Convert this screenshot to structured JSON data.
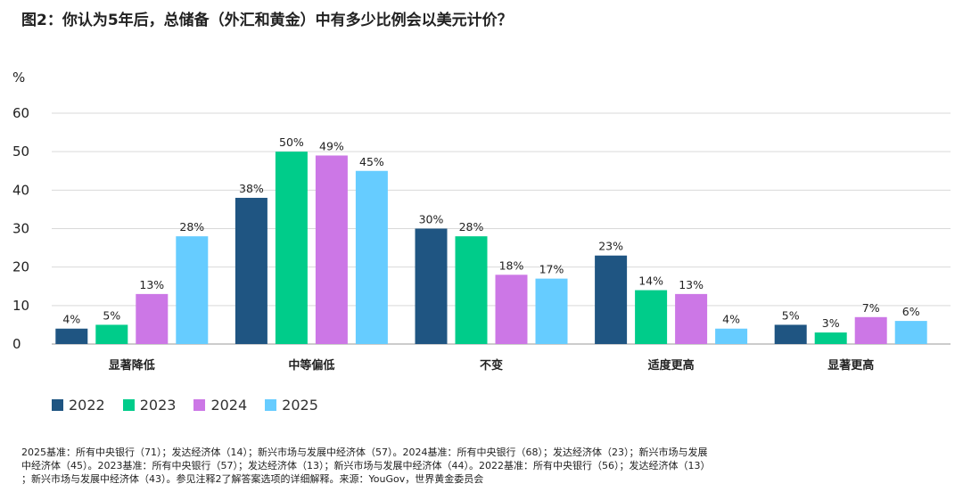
{
  "title": "图2：你认为5年后，总储备（外汇和黄金）中有多少比例会以美元计价？",
  "chart_data": {
    "type": "bar",
    "ylabel": "%",
    "ylim": [
      0,
      60
    ],
    "yticks": [
      "0",
      "10",
      "20",
      "30",
      "40",
      "50",
      "60"
    ],
    "grid": true,
    "legend_position": "bottom-left",
    "categories": [
      "显著降低",
      "中等偏低",
      "不变",
      "适度更高",
      "显著更高"
    ],
    "series": [
      {
        "name": "2022",
        "color": "#1f5582",
        "values": [
          4,
          38,
          30,
          23,
          5
        ],
        "labels": [
          "4%",
          "38%",
          "30%",
          "23%",
          "5%"
        ]
      },
      {
        "name": "2023",
        "color": "#00cc8a",
        "values": [
          5,
          50,
          28,
          14,
          3
        ],
        "labels": [
          "5%",
          "50%",
          "28%",
          "14%",
          "3%"
        ]
      },
      {
        "name": "2024",
        "color": "#cc77e6",
        "values": [
          13,
          49,
          18,
          13,
          7
        ],
        "labels": [
          "13%",
          "49%",
          "18%",
          "13%",
          "7%"
        ]
      },
      {
        "name": "2025",
        "color": "#66ccff",
        "values": [
          28,
          45,
          17,
          4,
          6
        ],
        "labels": [
          "28%",
          "45%",
          "17%",
          "4%",
          "6%"
        ]
      }
    ]
  },
  "footnote": {
    "line1": "2025基准：所有中央银行（71）；发达经济体（14）；新兴市场与发展中经济体（57）。2024基准：所有中央银行（68）；发达经济体（23）；新兴市场与发展",
    "line2": "中经济体（45）。2023基准：所有中央银行（57）；发达经济体（13）；新兴市场与发展中经济体（44）。2022基准：所有中央银行（56）；发达经济体（13）",
    "line3": "；新兴市场与发展中经济体（43）。参见注释2了解答案选项的详细解释。来源：YouGov，世界黄金委员会"
  }
}
